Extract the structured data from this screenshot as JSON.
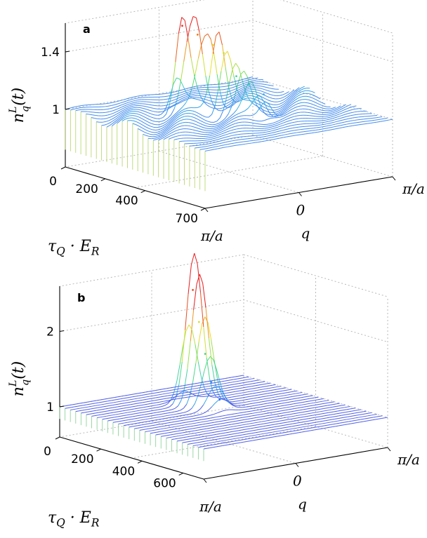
{
  "chart_data": [
    {
      "type": "surface",
      "panel_label": "a",
      "zlabel": "n_q^L(t)",
      "xlabel": "τ_Q · E_R",
      "ylabel": "q",
      "z_ticks": [
        "1",
        "1.4"
      ],
      "x_ticks": [
        "0",
        "200",
        "400",
        "700"
      ],
      "y_ticks": [
        "π/a",
        "0",
        "π/a"
      ],
      "x_range": [
        0,
        700
      ],
      "y_range": [
        "-π/a",
        "π/a"
      ],
      "z_range": [
        0.6,
        1.6
      ],
      "baseline": 1.0,
      "grid": true,
      "peaks": [
        {
          "tau": 210,
          "q": -0.2,
          "value": 1.58
        },
        {
          "tau": 240,
          "q": -0.1,
          "value": 1.52
        },
        {
          "tau": 270,
          "q": 0.0,
          "value": 1.45
        },
        {
          "tau": 300,
          "q": 0.05,
          "value": 1.4
        },
        {
          "tau": 340,
          "q": 0.1,
          "value": 1.25
        },
        {
          "tau": 380,
          "q": 0.15,
          "value": 1.2
        },
        {
          "tau": 430,
          "q": 0.2,
          "value": 1.15
        }
      ]
    },
    {
      "type": "surface",
      "panel_label": "b",
      "zlabel": "n_q^L(t)",
      "xlabel": "τ_Q · E_R",
      "ylabel": "q",
      "z_ticks": [
        "1",
        "2"
      ],
      "x_ticks": [
        "0",
        "200",
        "400",
        "600"
      ],
      "y_ticks": [
        "π/a",
        "0",
        "π/a"
      ],
      "x_range": [
        0,
        700
      ],
      "y_range": [
        "-π/a",
        "π/a"
      ],
      "z_range": [
        0.6,
        2.6
      ],
      "baseline": 1.0,
      "grid": true,
      "peaks": [
        {
          "tau": 200,
          "q": 0.0,
          "value": 2.5
        },
        {
          "tau": 230,
          "q": 0.0,
          "value": 2.1
        },
        {
          "tau": 260,
          "q": 0.0,
          "value": 1.7
        },
        {
          "tau": 290,
          "q": 0.0,
          "value": 1.35
        },
        {
          "tau": 330,
          "q": 0.0,
          "value": 1.15
        }
      ]
    }
  ]
}
